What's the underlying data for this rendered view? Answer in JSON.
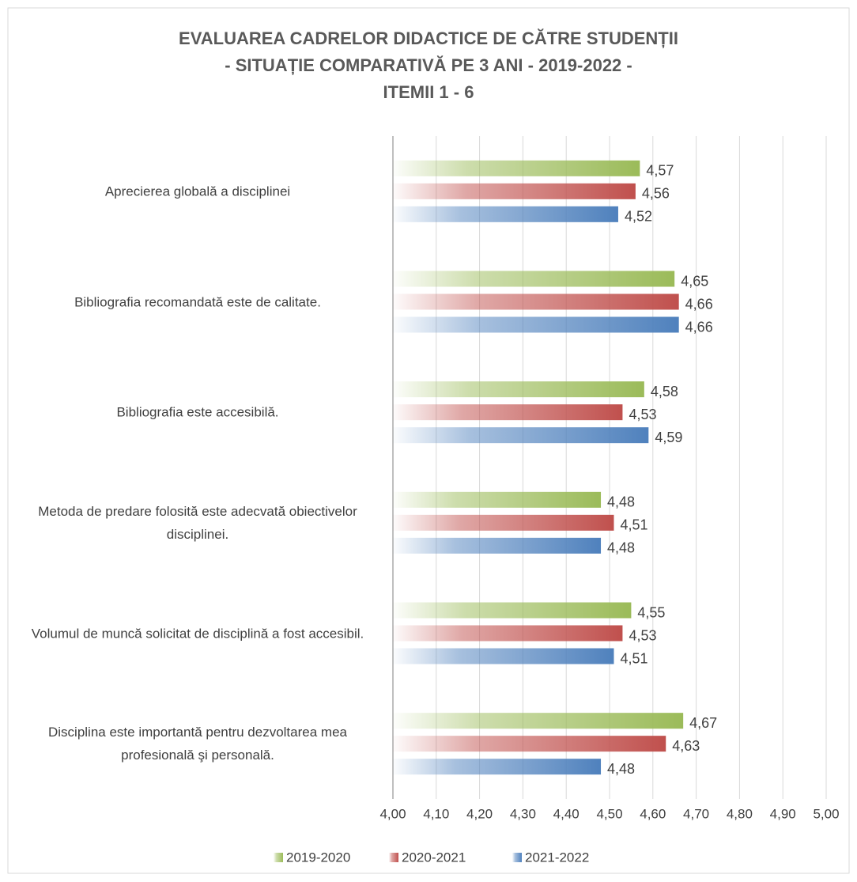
{
  "chart_data": {
    "type": "bar",
    "orientation": "horizontal",
    "title": [
      "EVALUAREA CADRELOR DIDACTICE DE CĂTRE STUDENȚII",
      "- SITUAȚIE COMPARATIVĂ PE 3 ANI - 2019-2022 -",
      "ITEMII 1 - 6"
    ],
    "categories": [
      "Aprecierea globală a disciplinei",
      "Bibliografia recomandată este de calitate.",
      "Bibliografia este accesibilă.",
      "Metoda de predare folosită este adecvată obiectivelor disciplinei.",
      "Volumul de muncă solicitat de disciplină a fost accesibil.",
      "Disciplina este importantă pentru dezvoltarea mea profesională şi personală."
    ],
    "series": [
      {
        "name": "2019-2020",
        "color": "#9bbb59",
        "values": [
          4.57,
          4.65,
          4.58,
          4.48,
          4.55,
          4.67
        ],
        "value_labels": [
          "4,57",
          "4,65",
          "4,58",
          "4,48",
          "4,55",
          "4,67"
        ]
      },
      {
        "name": "2020-2021",
        "color": "#c0504d",
        "values": [
          4.56,
          4.66,
          4.53,
          4.51,
          4.53,
          4.63
        ],
        "value_labels": [
          "4,56",
          "4,66",
          "4,53",
          "4,51",
          "4,53",
          "4,63"
        ]
      },
      {
        "name": "2021-2022",
        "color": "#4f81bd",
        "values": [
          4.52,
          4.66,
          4.59,
          4.48,
          4.51,
          4.48
        ],
        "value_labels": [
          "4,52",
          "4,66",
          "4,59",
          "4,48",
          "4,51",
          "4,48"
        ]
      }
    ],
    "xlim": [
      4.0,
      5.0
    ],
    "xticks": [
      {
        "value": 4.0,
        "label": "4,00"
      },
      {
        "value": 4.1,
        "label": "4,10"
      },
      {
        "value": 4.2,
        "label": "4,20"
      },
      {
        "value": 4.3,
        "label": "4,30"
      },
      {
        "value": 4.4,
        "label": "4,40"
      },
      {
        "value": 4.5,
        "label": "4,50"
      },
      {
        "value": 4.6,
        "label": "4,60"
      },
      {
        "value": 4.7,
        "label": "4,70"
      },
      {
        "value": 4.8,
        "label": "4,80"
      },
      {
        "value": 4.9,
        "label": "4,90"
      },
      {
        "value": 5.0,
        "label": "5,00"
      }
    ],
    "grid": true,
    "legend": "bottom"
  }
}
